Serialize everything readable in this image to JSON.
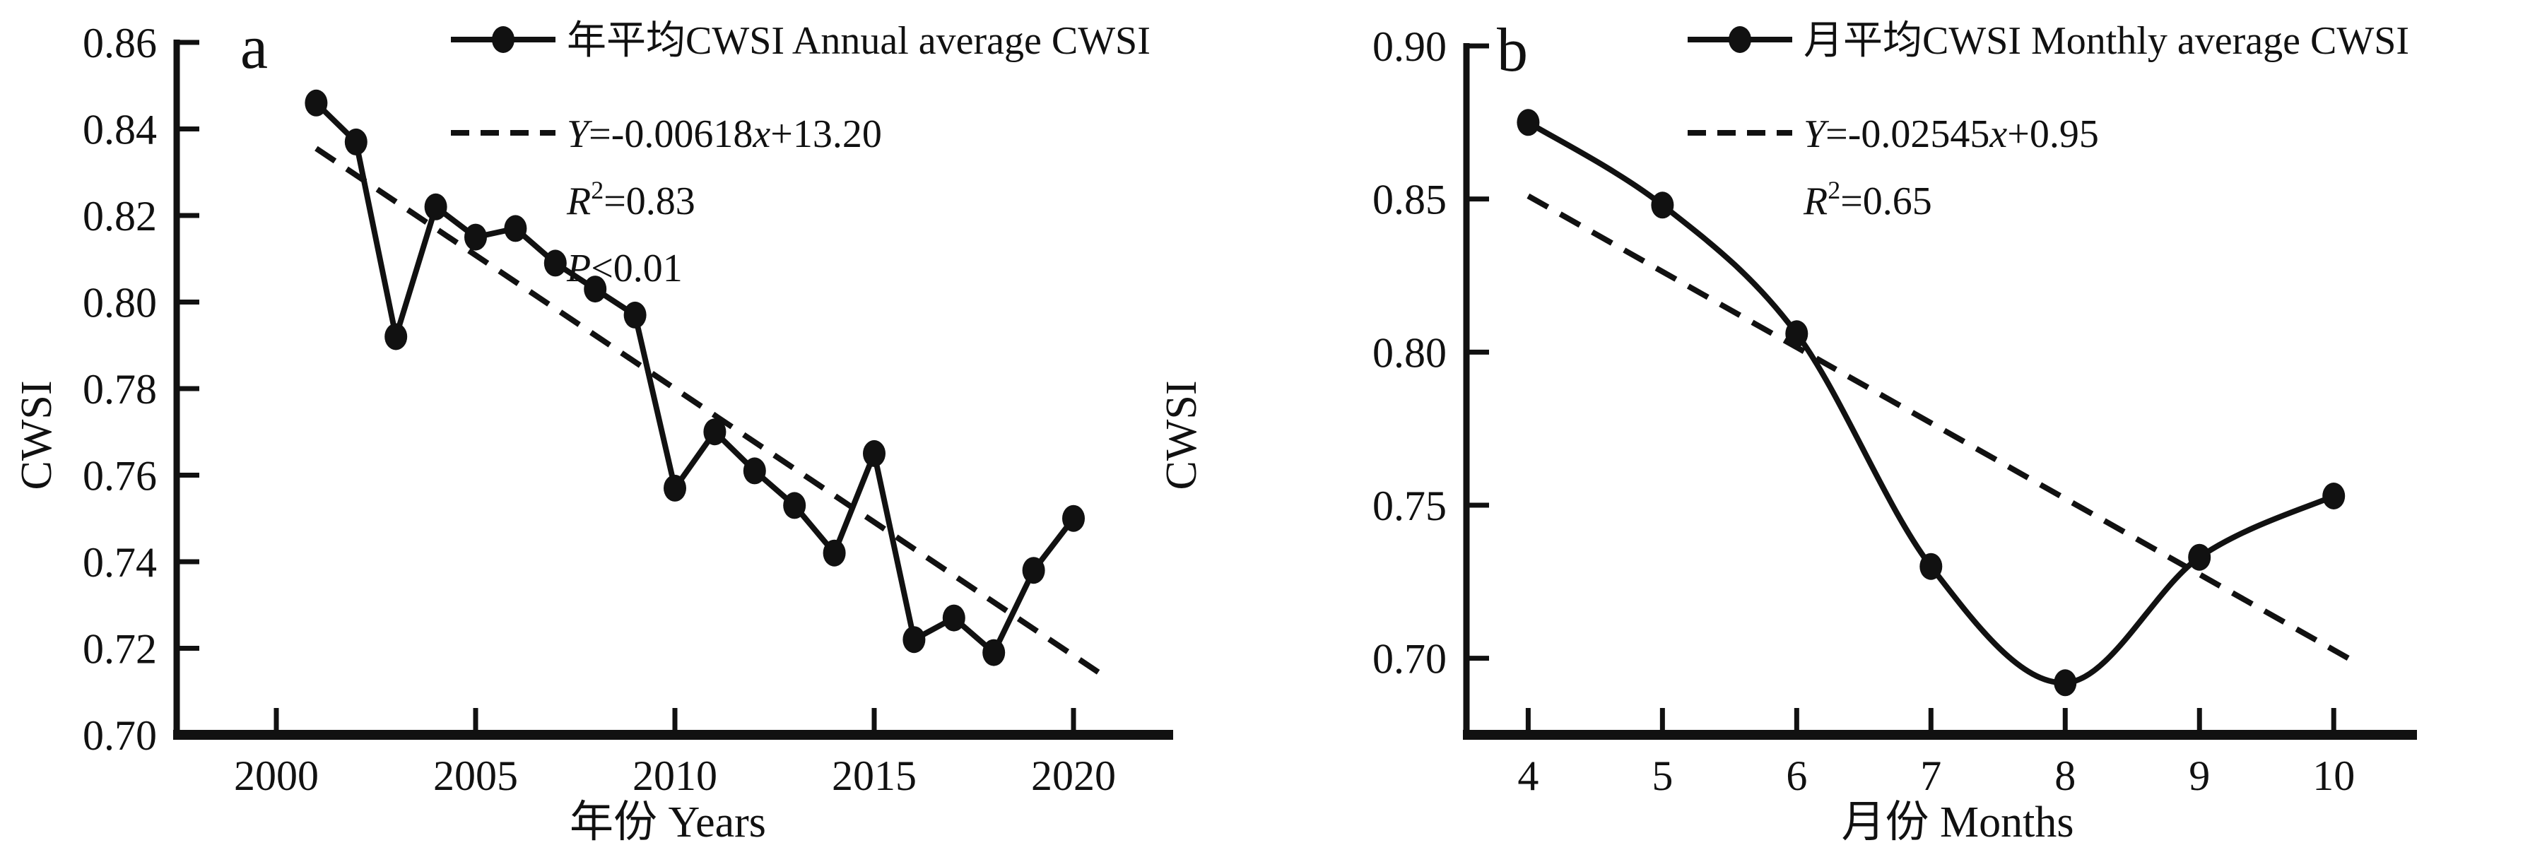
{
  "figure": {
    "background": "#ffffff",
    "ink_color": "#111111",
    "panels": [
      "a",
      "b"
    ]
  },
  "chart_data": [
    {
      "type": "line",
      "panel_label": "a",
      "xlabel": "年份 Years",
      "ylabel": "CWSI",
      "grid": false,
      "legend_position": "top-inside",
      "xlim": [
        1997.5,
        2022.5
      ],
      "ylim": [
        0.7,
        0.86
      ],
      "x_ticks": {
        "values": [
          2000,
          2005,
          2010,
          2015,
          2020
        ],
        "labels": [
          "2000",
          "2005",
          "2010",
          "2015",
          "2020"
        ]
      },
      "y_ticks": {
        "values": [
          0.86,
          0.84,
          0.82,
          0.8,
          0.78,
          0.76,
          0.74,
          0.72,
          0.7
        ],
        "labels": [
          "0.86",
          "0.84",
          "0.82",
          "0.80",
          "0.78",
          "0.76",
          "0.74",
          "0.72",
          "0.70"
        ]
      },
      "series": [
        {
          "name": "年平均CWSI Annual average CWSI",
          "marker": "filled-circle",
          "line_style": "solid",
          "smooth": false,
          "x": [
            2001,
            2002,
            2003,
            2004,
            2005,
            2006,
            2007,
            2008,
            2009,
            2010,
            2011,
            2012,
            2013,
            2014,
            2015,
            2016,
            2017,
            2018,
            2019,
            2020
          ],
          "values": [
            0.846,
            0.837,
            0.792,
            0.822,
            0.815,
            0.817,
            0.809,
            0.803,
            0.797,
            0.757,
            0.77,
            0.761,
            0.753,
            0.742,
            0.765,
            0.722,
            0.727,
            0.719,
            0.738,
            0.75
          ]
        }
      ],
      "trend": {
        "line_style": "dashed",
        "equation": "Y=-0.00618x+13.20",
        "equation_parts": [
          "Y",
          "=-0.00618",
          "x",
          "+13.20"
        ],
        "r_squared": "R2=0.83",
        "r2_parts": [
          "R",
          "2",
          "=0.83"
        ],
        "p_value": "P<0.01",
        "p_parts": [
          "P",
          "<0.01"
        ],
        "x1": 2001,
        "y1": 0.8355,
        "x2": 2020.7,
        "y2": 0.714
      }
    },
    {
      "type": "line",
      "panel_label": "b",
      "xlabel": "月份 Months",
      "ylabel": "CWSI",
      "grid": false,
      "legend_position": "top-inside",
      "xlim": [
        3.54,
        10.62
      ],
      "ylim": [
        0.675,
        0.9
      ],
      "x_ticks": {
        "values": [
          4,
          5,
          6,
          7,
          8,
          9,
          10
        ],
        "labels": [
          "4",
          "5",
          "6",
          "7",
          "8",
          "9",
          "10"
        ]
      },
      "y_ticks": {
        "values": [
          0.9,
          0.85,
          0.8,
          0.75,
          0.7
        ],
        "labels": [
          "0.90",
          "0.85",
          "0.80",
          "0.75",
          "0.70"
        ]
      },
      "series": [
        {
          "name": "月平均CWSI Monthly average CWSI",
          "marker": "filled-circle",
          "line_style": "solid",
          "smooth": true,
          "x": [
            4,
            5,
            6,
            7,
            8,
            9,
            10
          ],
          "values": [
            0.875,
            0.848,
            0.806,
            0.73,
            0.692,
            0.733,
            0.753
          ]
        }
      ],
      "trend": {
        "line_style": "dashed",
        "equation": "Y=-0.02545x+0.95",
        "equation_parts": [
          "Y",
          "=-0.02545",
          "x",
          "+0.95"
        ],
        "r_squared": "R2=0.65",
        "r2_parts": [
          "R",
          "2",
          "=0.65"
        ],
        "x1": 4,
        "y1": 0.851,
        "x2": 10.15,
        "y2": 0.699
      }
    }
  ]
}
